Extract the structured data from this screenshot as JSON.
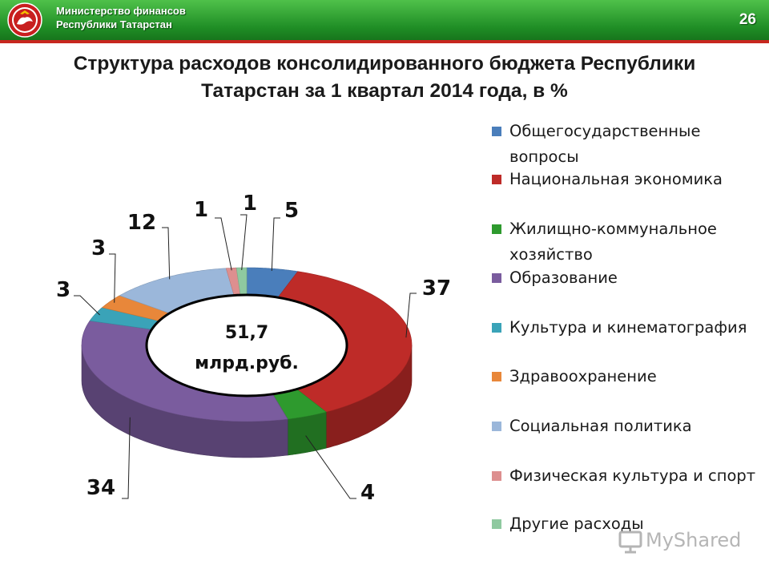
{
  "header": {
    "ministry_line1": "Министерство финансов",
    "ministry_line2": "Республики Татарстан",
    "page_number": "26",
    "bar_color": "#2a9a2e",
    "accent_line_color": "#c7271f"
  },
  "title": {
    "line1": "Структура расходов консолидированного бюджета Республики",
    "line2": "Татарстан за 1 квартал 2014 года, в %"
  },
  "chart_data": {
    "type": "pie",
    "style": "3d-donut",
    "unit": "%",
    "center_label": {
      "value": "51,7",
      "unit": "млрд.руб."
    },
    "legend_position": "right",
    "categories": [
      "Общегосударственные вопросы",
      "Национальная экономика",
      "Жилищно-коммунальное хозяйство",
      "Образование",
      "Культура и кинематография",
      "Здравоохранение",
      "Социальная политика",
      "Физическая культура и спорт",
      "Другие расходы"
    ],
    "values": [
      5,
      37,
      4,
      34,
      3,
      3,
      12,
      1,
      1
    ],
    "colors": [
      "#4a7ebb",
      "#be2b28",
      "#2e9a2e",
      "#7a5c9e",
      "#3aa3b8",
      "#e8873a",
      "#9bb7da",
      "#dd8f8f",
      "#8fc9a0"
    ]
  },
  "legend": {
    "items": [
      {
        "label": "Общегосударственные вопросы"
      },
      {
        "label": "Национальная экономика"
      },
      {
        "label": "Жилищно-коммунальное хозяйство"
      },
      {
        "label": "Образование"
      },
      {
        "label": "Культура и кинематография"
      },
      {
        "label": "Здравоохранение"
      },
      {
        "label": "Социальная политика"
      },
      {
        "label": "Физическая культура и спорт"
      },
      {
        "label": "Другие расходы"
      }
    ]
  },
  "watermark": {
    "text": "MyShared"
  }
}
